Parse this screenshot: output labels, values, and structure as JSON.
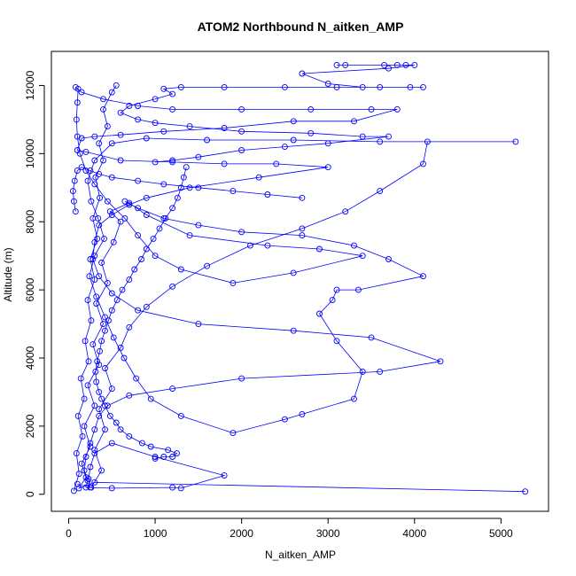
{
  "chart_data": {
    "type": "scatter",
    "title": "ATOM2 Northbound N_aitken_AMP",
    "xlabel": "N_aitken_AMP",
    "ylabel": "Altitude (m)",
    "xlim": [
      -200,
      5550
    ],
    "ylim": [
      -500,
      13000
    ],
    "x_ticks": [
      0,
      1000,
      2000,
      3000,
      4000,
      5000
    ],
    "y_ticks": [
      0,
      2000,
      4000,
      6000,
      8000,
      10000,
      12000
    ],
    "grid": false,
    "legend": "none",
    "marker": "open-circle",
    "line": "connected",
    "color": "#0000ff",
    "series": [
      {
        "points": [
          [
            5280,
            80
          ],
          [
            300,
            350
          ],
          [
            120,
            180
          ],
          [
            200,
            500
          ],
          [
            150,
            900
          ],
          [
            250,
            1400
          ],
          [
            180,
            2000
          ],
          [
            300,
            2600
          ],
          [
            220,
            3200
          ],
          [
            350,
            3800
          ],
          [
            280,
            4400
          ],
          [
            400,
            5000
          ],
          [
            320,
            5600
          ],
          [
            450,
            6200
          ],
          [
            380,
            6800
          ],
          [
            520,
            7400
          ],
          [
            600,
            8000
          ],
          [
            480,
            8300
          ],
          [
            700,
            8550
          ],
          [
            900,
            8200
          ],
          [
            1400,
            7600
          ],
          [
            2300,
            7300
          ],
          [
            2900,
            7200
          ],
          [
            3400,
            7000
          ],
          [
            2600,
            6500
          ],
          [
            1900,
            6200
          ],
          [
            1300,
            6600
          ],
          [
            1000,
            7000
          ],
          [
            800,
            7600
          ],
          [
            650,
            8100
          ],
          [
            450,
            8600
          ],
          [
            300,
            9100
          ],
          [
            200,
            9500
          ],
          [
            130,
            10000
          ],
          [
            100,
            10500
          ],
          [
            90,
            11000
          ],
          [
            100,
            11500
          ],
          [
            110,
            11900
          ],
          [
            80,
            11950
          ],
          [
            150,
            11800
          ],
          [
            400,
            11600
          ],
          [
            800,
            11400
          ],
          [
            1200,
            11300
          ],
          [
            2000,
            11300
          ],
          [
            2800,
            11300
          ],
          [
            3500,
            11300
          ],
          [
            3800,
            11300
          ],
          [
            3300,
            10950
          ],
          [
            2600,
            10950
          ],
          [
            1800,
            10750
          ],
          [
            1100,
            10650
          ],
          [
            600,
            10550
          ],
          [
            300,
            10500
          ],
          [
            150,
            10450
          ],
          [
            100,
            10100
          ],
          [
            200,
            10050
          ],
          [
            600,
            9800
          ],
          [
            1200,
            9750
          ],
          [
            1800,
            9700
          ],
          [
            2400,
            9700
          ],
          [
            3000,
            9600
          ],
          [
            2200,
            9300
          ],
          [
            1400,
            9000
          ],
          [
            900,
            8700
          ],
          [
            700,
            8500
          ],
          [
            500,
            8200
          ],
          [
            350,
            7900
          ],
          [
            300,
            7400
          ],
          [
            280,
            6900
          ],
          [
            350,
            6400
          ],
          [
            500,
            5900
          ],
          [
            800,
            5400
          ],
          [
            1500,
            5000
          ],
          [
            2600,
            4800
          ],
          [
            3500,
            4600
          ],
          [
            4300,
            3900
          ],
          [
            3600,
            3600
          ],
          [
            2000,
            3400
          ],
          [
            1200,
            3100
          ],
          [
            700,
            2900
          ],
          [
            450,
            2600
          ],
          [
            350,
            2300
          ],
          [
            300,
            1900
          ],
          [
            250,
            1500
          ],
          [
            200,
            1100
          ],
          [
            180,
            700
          ],
          [
            220,
            400
          ],
          [
            200,
            200
          ],
          [
            500,
            180
          ],
          [
            1200,
            200
          ],
          [
            1300,
            180
          ],
          [
            1800,
            550
          ],
          [
            1000,
            1100
          ],
          [
            500,
            1500
          ],
          [
            300,
            1200
          ],
          [
            250,
            800
          ],
          [
            230,
            450
          ],
          [
            250,
            200
          ],
          [
            100,
            300
          ]
        ]
      },
      {
        "points": [
          [
            260,
            200
          ],
          [
            380,
            700
          ],
          [
            300,
            1300
          ],
          [
            420,
            1900
          ],
          [
            350,
            2500
          ],
          [
            500,
            3100
          ],
          [
            420,
            3700
          ],
          [
            600,
            4300
          ],
          [
            700,
            4900
          ],
          [
            900,
            5500
          ],
          [
            1200,
            6100
          ],
          [
            1600,
            6700
          ],
          [
            2100,
            7300
          ],
          [
            2700,
            7800
          ],
          [
            3200,
            8300
          ],
          [
            3600,
            8900
          ],
          [
            4100,
            9700
          ],
          [
            4150,
            10350
          ],
          [
            5170,
            10350
          ],
          [
            3600,
            10350
          ],
          [
            2600,
            10400
          ],
          [
            1600,
            10400
          ],
          [
            900,
            10450
          ],
          [
            500,
            10300
          ],
          [
            300,
            9800
          ],
          [
            220,
            9200
          ],
          [
            260,
            8600
          ],
          [
            340,
            8100
          ],
          [
            410,
            7500
          ],
          [
            300,
            7000
          ],
          [
            240,
            6400
          ],
          [
            320,
            5800
          ],
          [
            420,
            5200
          ],
          [
            520,
            4600
          ],
          [
            640,
            4000
          ],
          [
            780,
            3400
          ],
          [
            950,
            2800
          ],
          [
            1300,
            2300
          ],
          [
            1900,
            1800
          ],
          [
            2500,
            2200
          ],
          [
            2700,
            2350
          ],
          [
            3300,
            2800
          ],
          [
            3400,
            3600
          ],
          [
            3100,
            4500
          ],
          [
            2900,
            5300
          ],
          [
            3050,
            5700
          ],
          [
            3100,
            6000
          ],
          [
            3350,
            6000
          ],
          [
            4100,
            6400
          ],
          [
            3700,
            6900
          ],
          [
            3300,
            7300
          ],
          [
            2700,
            7600
          ],
          [
            2000,
            7700
          ],
          [
            1500,
            7900
          ],
          [
            1100,
            8100
          ],
          [
            800,
            8400
          ],
          [
            650,
            8600
          ]
        ]
      },
      {
        "points": [
          [
            3100,
            12600
          ],
          [
            3200,
            12600
          ],
          [
            3650,
            12600
          ],
          [
            3800,
            12600
          ],
          [
            3900,
            12600
          ],
          [
            4000,
            12600
          ],
          [
            3700,
            12500
          ],
          [
            2700,
            12350
          ],
          [
            3000,
            12050
          ],
          [
            3400,
            11950
          ],
          [
            3600,
            11950
          ],
          [
            3950,
            11950
          ],
          [
            4100,
            11950
          ],
          [
            3100,
            11950
          ],
          [
            2500,
            11950
          ],
          [
            1800,
            11950
          ],
          [
            1300,
            11950
          ],
          [
            1100,
            11900
          ],
          [
            1200,
            11750
          ],
          [
            1000,
            11600
          ],
          [
            700,
            11400
          ],
          [
            600,
            11200
          ],
          [
            800,
            11000
          ],
          [
            1000,
            10900
          ],
          [
            1400,
            10800
          ],
          [
            2000,
            10650
          ],
          [
            2800,
            10600
          ],
          [
            3400,
            10500
          ],
          [
            3700,
            10500
          ],
          [
            3000,
            10300
          ],
          [
            2500,
            10200
          ],
          [
            2000,
            10100
          ],
          [
            1500,
            9900
          ],
          [
            1200,
            9800
          ],
          [
            1000,
            9750
          ]
        ]
      },
      {
        "points": [
          [
            60,
            100
          ],
          [
            120,
            600
          ],
          [
            90,
            1200
          ],
          [
            160,
            1700
          ],
          [
            110,
            2300
          ],
          [
            180,
            2800
          ],
          [
            140,
            3400
          ],
          [
            230,
            3900
          ],
          [
            190,
            4500
          ],
          [
            260,
            5100
          ],
          [
            220,
            5700
          ],
          [
            300,
            6300
          ],
          [
            250,
            6900
          ],
          [
            330,
            7500
          ],
          [
            280,
            8100
          ],
          [
            360,
            8700
          ],
          [
            310,
            9300
          ],
          [
            400,
            9800
          ],
          [
            350,
            10300
          ],
          [
            450,
            10800
          ],
          [
            400,
            11300
          ],
          [
            500,
            11800
          ],
          [
            550,
            12000
          ]
        ]
      },
      {
        "points": [
          [
            80,
            8300
          ],
          [
            60,
            8600
          ],
          [
            50,
            8900
          ],
          [
            70,
            9200
          ],
          [
            100,
            9500
          ],
          [
            150,
            9600
          ],
          [
            250,
            9500
          ],
          [
            350,
            9400
          ],
          [
            500,
            9300
          ],
          [
            800,
            9200
          ],
          [
            1100,
            9100
          ],
          [
            1500,
            9000
          ],
          [
            1900,
            8900
          ],
          [
            2300,
            8800
          ],
          [
            2700,
            8700
          ]
        ]
      },
      {
        "points": [
          [
            1000,
            1050
          ],
          [
            1100,
            1100
          ],
          [
            1200,
            1100
          ],
          [
            1250,
            1200
          ],
          [
            1150,
            1300
          ],
          [
            950,
            1400
          ],
          [
            850,
            1500
          ],
          [
            700,
            1700
          ],
          [
            600,
            1900
          ],
          [
            550,
            2100
          ],
          [
            480,
            2300
          ],
          [
            420,
            2600
          ],
          [
            380,
            2800
          ],
          [
            350,
            3000
          ],
          [
            320,
            3300
          ],
          [
            310,
            3600
          ],
          [
            330,
            3900
          ],
          [
            360,
            4200
          ],
          [
            380,
            4500
          ],
          [
            420,
            4800
          ],
          [
            460,
            5100
          ],
          [
            500,
            5400
          ],
          [
            560,
            5700
          ],
          [
            620,
            6000
          ],
          [
            700,
            6300
          ],
          [
            760,
            6600
          ],
          [
            840,
            6900
          ],
          [
            900,
            7200
          ],
          [
            980,
            7500
          ],
          [
            1050,
            7800
          ],
          [
            1120,
            8100
          ],
          [
            1200,
            8400
          ],
          [
            1260,
            8700
          ],
          [
            1300,
            9000
          ],
          [
            1330,
            9300
          ],
          [
            1360,
            9600
          ]
        ]
      }
    ]
  }
}
